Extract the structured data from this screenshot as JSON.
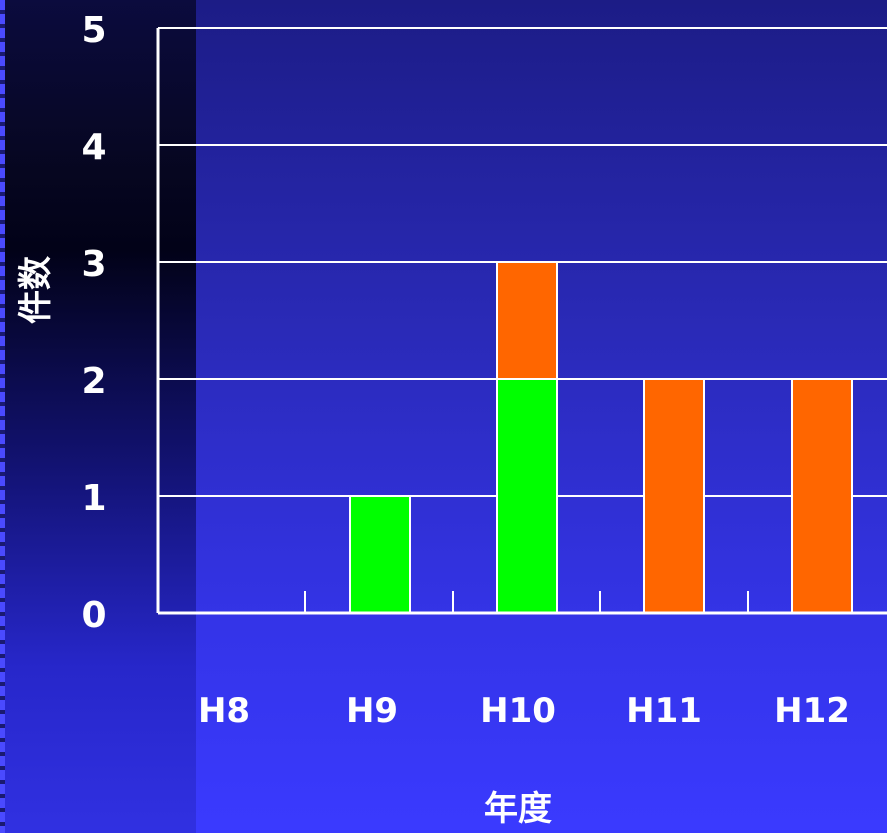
{
  "chart_data": {
    "type": "bar",
    "stacked": true,
    "categories": [
      "H8",
      "H9",
      "H10",
      "H11",
      "H12"
    ],
    "series": [
      {
        "values": [
          0,
          1,
          2,
          0,
          0
        ],
        "color": "#00ff00"
      },
      {
        "values": [
          0,
          0,
          1,
          2,
          2
        ],
        "color": "#ff6600"
      }
    ],
    "ylabel": "件数",
    "xlabel": "年度",
    "ylim": [
      0,
      5
    ],
    "yticks": [
      "0",
      "1",
      "2",
      "3",
      "4",
      "5"
    ],
    "grid": true
  },
  "colors": {
    "gridline": "#ffffff",
    "text": "#ffffff"
  }
}
